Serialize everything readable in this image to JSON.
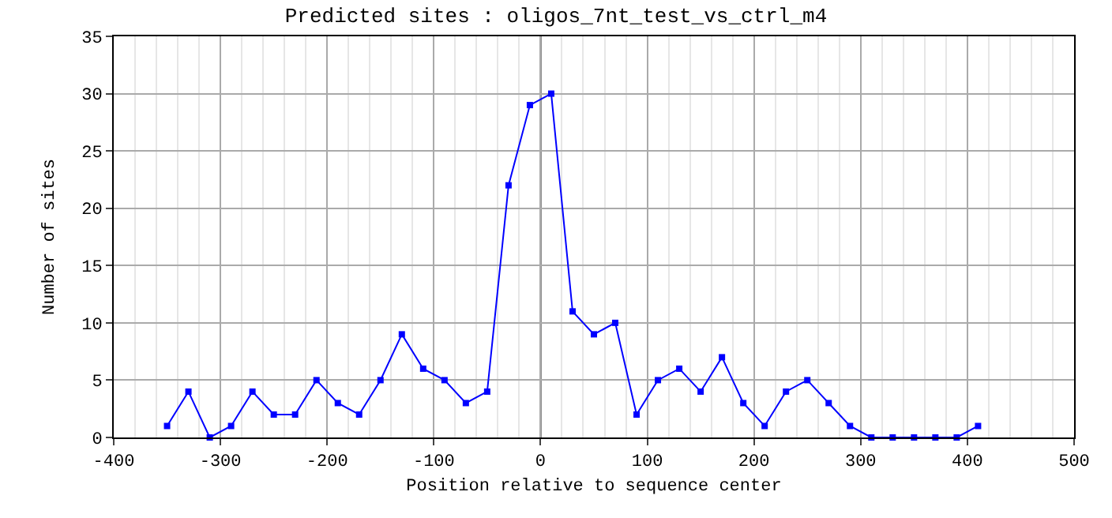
{
  "chart_data": {
    "type": "line",
    "title": "Predicted sites : oligos_7nt_test_vs_ctrl_m4",
    "xlabel": "Position relative to sequence center",
    "ylabel": "Number of sites",
    "x": [
      -350,
      -330,
      -310,
      -290,
      -270,
      -250,
      -230,
      -210,
      -190,
      -170,
      -150,
      -130,
      -110,
      -90,
      -70,
      -50,
      -30,
      -10,
      10,
      30,
      50,
      70,
      90,
      110,
      130,
      150,
      170,
      190,
      210,
      230,
      250,
      270,
      290,
      310,
      330,
      350,
      370,
      390,
      410
    ],
    "series": [
      {
        "color": "#0000ff",
        "values": [
          1,
          4,
          0,
          1,
          4,
          2,
          2,
          5,
          3,
          2,
          5,
          9,
          6,
          5,
          3,
          4,
          22,
          29,
          30,
          11,
          9,
          10,
          2,
          5,
          6,
          4,
          7,
          3,
          1,
          4,
          5,
          3,
          1,
          0,
          0,
          0,
          0,
          0,
          1
        ]
      }
    ],
    "xlim": [
      -400,
      500
    ],
    "xticks": [
      -400,
      -300,
      -200,
      -100,
      0,
      100,
      200,
      300,
      400,
      500
    ],
    "ylim": [
      0,
      35
    ],
    "yticks": [
      0,
      5,
      10,
      15,
      20,
      25,
      30,
      35
    ],
    "grid": true,
    "marker": "square",
    "line_style": "solid",
    "ref_lines": [
      {
        "axis": "x",
        "value": 0,
        "color": "#000000"
      }
    ]
  }
}
